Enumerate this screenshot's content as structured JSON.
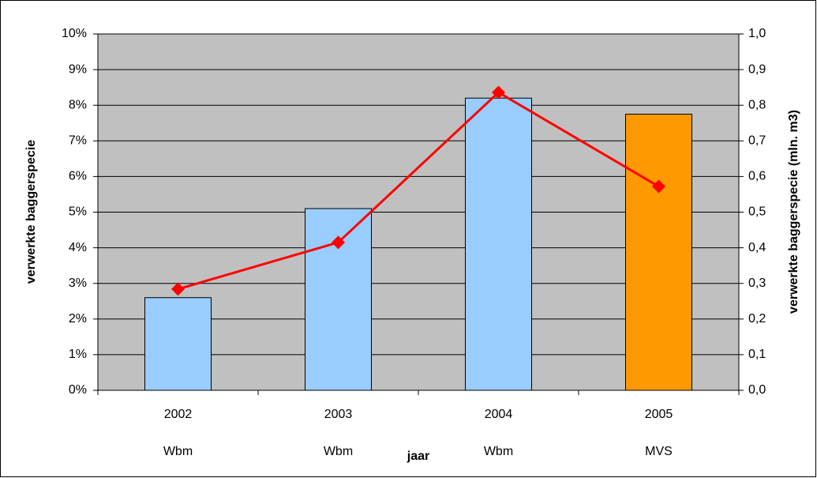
{
  "chart_data": {
    "type": "bar",
    "x_label": "jaar",
    "y_label": "verwerkte baggerspecie",
    "y2_label": "verwerkte baggerspecie (mln. m3)",
    "categories": [
      "2002",
      "2003",
      "2004",
      "2005"
    ],
    "category_sublabels": [
      "Wbm",
      "Wbm",
      "Wbm",
      "MVS"
    ],
    "series": [
      {
        "type": "bar",
        "colors": [
          "#99ccff",
          "#99ccff",
          "#99ccff",
          "#ff9900"
        ],
        "values": [
          2.6,
          5.1,
          8.2,
          7.75
        ]
      },
      {
        "type": "line",
        "color": "#ff0000",
        "axis": "y2",
        "values": [
          0.284,
          0.415,
          0.836,
          0.572
        ]
      }
    ],
    "ylim": [
      0,
      10
    ],
    "yticks": [
      {
        "value": 0,
        "label": "0%"
      },
      {
        "value": 1,
        "label": "1%"
      },
      {
        "value": 2,
        "label": "2%"
      },
      {
        "value": 3,
        "label": "3%"
      },
      {
        "value": 4,
        "label": "4%"
      },
      {
        "value": 5,
        "label": "5%"
      },
      {
        "value": 6,
        "label": "6%"
      },
      {
        "value": 7,
        "label": "7%"
      },
      {
        "value": 8,
        "label": "8%"
      },
      {
        "value": 9,
        "label": "9%"
      },
      {
        "value": 10,
        "label": "10%"
      }
    ],
    "y2lim": [
      0,
      1
    ],
    "y2ticks": [
      {
        "value": 0,
        "label": "0,0"
      },
      {
        "value": 0.1,
        "label": "0,1"
      },
      {
        "value": 0.2,
        "label": "0,2"
      },
      {
        "value": 0.3,
        "label": "0,3"
      },
      {
        "value": 0.4,
        "label": "0,4"
      },
      {
        "value": 0.5,
        "label": "0,5"
      },
      {
        "value": 0.6,
        "label": "0,6"
      },
      {
        "value": 0.7,
        "label": "0,7"
      },
      {
        "value": 0.8,
        "label": "0,8"
      },
      {
        "value": 0.9,
        "label": "0,9"
      },
      {
        "value": 1,
        "label": "1,0"
      }
    ],
    "grid": true,
    "plot_background": "#c0c0c0"
  }
}
